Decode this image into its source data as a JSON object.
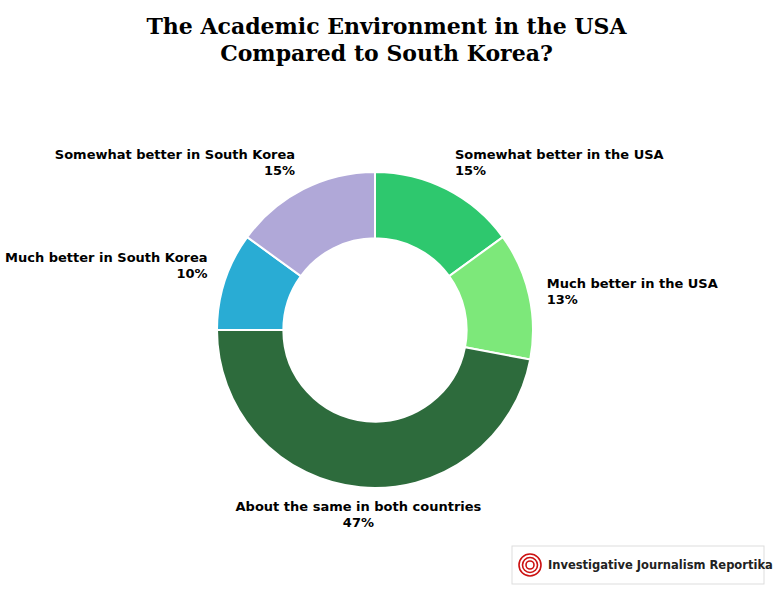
{
  "chart_data": {
    "type": "donut",
    "title": "The Academic Environment in the USA\nCompared to South Korea?",
    "categories": [
      "Somewhat better in the USA",
      "Much better in the USA",
      "About the same in both countries",
      "Much better in South Korea",
      "Somewhat better in South Korea"
    ],
    "values": [
      15,
      13,
      47,
      10,
      15
    ],
    "value_labels": [
      "15%",
      "13%",
      "47%",
      "10%",
      "15%"
    ],
    "colors": [
      "#2ec86e",
      "#7de87a",
      "#2d6b3c",
      "#29acd4",
      "#b0a8d8"
    ],
    "data_labels": true,
    "annotations": [
      "Investigative Journalism Reportika"
    ]
  }
}
